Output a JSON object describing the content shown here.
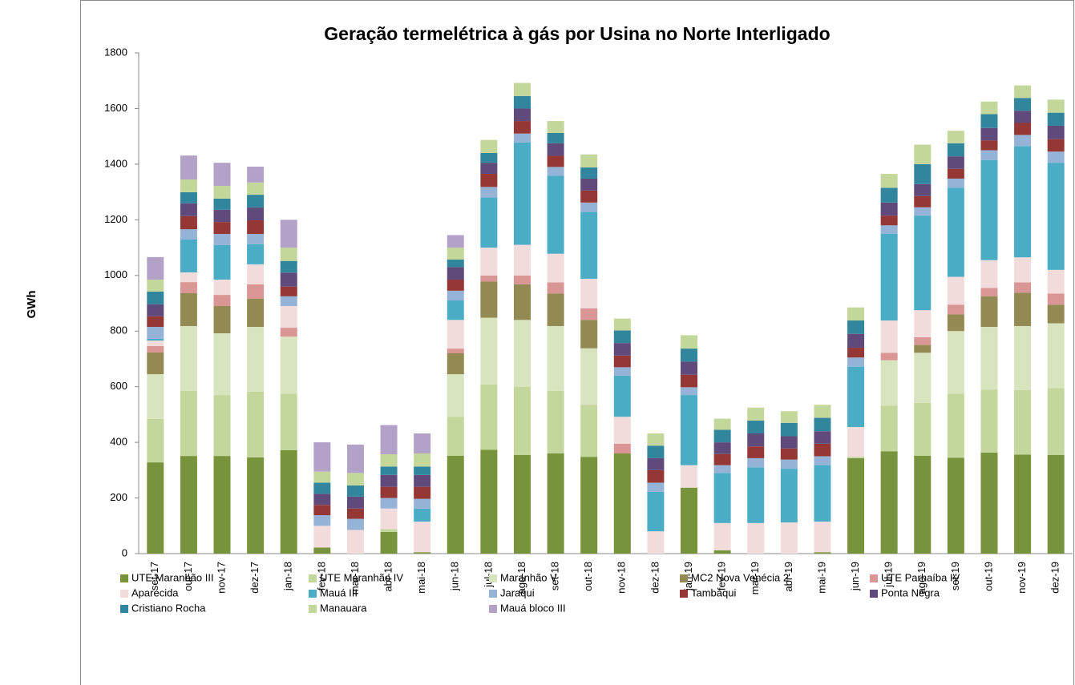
{
  "chart_data": {
    "type": "stacked-bar",
    "title": "Geração termelétrica à gás por Usina no Norte Interligado",
    "y_label": "GWh",
    "categories": [
      "set-17",
      "out-17",
      "nov-17",
      "dez-17",
      "jan-18",
      "fev-18",
      "mar-18",
      "abr-18",
      "mai-18",
      "jun-18",
      "jul-18",
      "ago-18",
      "set-18",
      "out-18",
      "nov-18",
      "dez-18",
      "jan-19",
      "fev-19",
      "mar-19",
      "abr-19",
      "mai-19",
      "jun-19",
      "jul-19",
      "ago-19",
      "set-19",
      "out-19",
      "nov-19",
      "dez-19"
    ],
    "ylim": [
      0,
      1800
    ],
    "yticks": [
      0,
      200,
      400,
      600,
      800,
      1000,
      1200,
      1400,
      1600,
      1800
    ],
    "grid": false,
    "legend": "bottom",
    "series": [
      {
        "name": "UTE Maranhão III",
        "color": "#77933c",
        "values": [
          328,
          351,
          351,
          346,
          372,
          22,
          0,
          78,
          5,
          352,
          373,
          355,
          360,
          348,
          360,
          0,
          237,
          12,
          0,
          0,
          5,
          343,
          368,
          352,
          345,
          363,
          356,
          355
        ]
      },
      {
        "name": "UTE Maranhão IV",
        "color": "#c3d69b",
        "values": [
          156,
          234,
          219,
          236,
          203,
          0,
          0,
          10,
          0,
          140,
          235,
          245,
          225,
          187,
          0,
          0,
          0,
          0,
          0,
          0,
          0,
          5,
          164,
          190,
          230,
          227,
          232,
          240
        ]
      },
      {
        "name": "Maranhão V",
        "color": "#d7e4bd",
        "values": [
          161,
          233,
          222,
          233,
          205,
          0,
          0,
          0,
          0,
          153,
          240,
          240,
          233,
          203,
          0,
          0,
          0,
          0,
          0,
          0,
          0,
          0,
          163,
          180,
          225,
          225,
          230,
          233
        ]
      },
      {
        "name": "MC2 Nova Venécia 2",
        "color": "#938953",
        "values": [
          78,
          118,
          98,
          101,
          0,
          0,
          0,
          0,
          0,
          75,
          130,
          128,
          117,
          102,
          0,
          0,
          0,
          0,
          0,
          0,
          0,
          0,
          0,
          28,
          60,
          110,
          120,
          67
        ]
      },
      {
        "name": "UTE Parnaíba IV",
        "color": "#d99694",
        "values": [
          23,
          40,
          40,
          52,
          32,
          0,
          0,
          0,
          0,
          17,
          22,
          32,
          40,
          42,
          35,
          0,
          0,
          0,
          0,
          0,
          0,
          0,
          27,
          28,
          35,
          30,
          37,
          40
        ]
      },
      {
        "name": "Aparecida",
        "color": "#f2dcdb",
        "values": [
          20,
          35,
          55,
          72,
          78,
          78,
          85,
          74,
          110,
          103,
          100,
          110,
          103,
          106,
          97,
          80,
          81,
          98,
          110,
          112,
          110,
          107,
          116,
          97,
          100,
          100,
          90,
          85
        ]
      },
      {
        "name": "Mauá III",
        "color": "#4bacc6",
        "values": [
          6,
          118,
          124,
          72,
          0,
          0,
          0,
          0,
          47,
          70,
          180,
          368,
          280,
          240,
          148,
          142,
          252,
          180,
          200,
          193,
          203,
          217,
          312,
          340,
          320,
          360,
          400,
          385
        ]
      },
      {
        "name": "Jaraqui",
        "color": "#95b3d7",
        "values": [
          43,
          37,
          40,
          37,
          35,
          38,
          40,
          38,
          35,
          35,
          38,
          32,
          32,
          34,
          30,
          33,
          28,
          28,
          33,
          33,
          32,
          33,
          30,
          30,
          33,
          35,
          40,
          40
        ]
      },
      {
        "name": "Tambaqui",
        "color": "#953735",
        "values": [
          38,
          47,
          43,
          49,
          35,
          37,
          37,
          40,
          43,
          40,
          47,
          45,
          40,
          43,
          42,
          45,
          45,
          40,
          42,
          40,
          45,
          35,
          35,
          40,
          35,
          35,
          43,
          45
        ]
      },
      {
        "name": "Ponta Negra",
        "color": "#604a7b",
        "values": [
          43,
          46,
          44,
          46,
          50,
          40,
          43,
          43,
          43,
          45,
          40,
          45,
          45,
          43,
          45,
          43,
          47,
          42,
          47,
          44,
          45,
          50,
          47,
          43,
          45,
          45,
          44,
          48
        ]
      },
      {
        "name": "Cristiano Rocha",
        "color": "#31859c",
        "values": [
          46,
          40,
          40,
          46,
          42,
          40,
          40,
          30,
          30,
          27,
          35,
          45,
          37,
          40,
          45,
          45,
          47,
          45,
          46,
          48,
          48,
          48,
          53,
          72,
          47,
          50,
          46,
          47
        ]
      },
      {
        "name": "Manauara",
        "color": "#c4d79b",
        "values": [
          43,
          46,
          46,
          44,
          48,
          40,
          45,
          44,
          47,
          43,
          47,
          47,
          43,
          47,
          43,
          44,
          48,
          40,
          47,
          42,
          47,
          47,
          50,
          70,
          45,
          45,
          45,
          47
        ]
      },
      {
        "name": "Mauá bloco III",
        "color": "#b3a2c7",
        "values": [
          81,
          86,
          83,
          57,
          100,
          105,
          102,
          105,
          72,
          45,
          0,
          0,
          0,
          0,
          0,
          0,
          0,
          0,
          0,
          0,
          0,
          0,
          0,
          0,
          0,
          0,
          0,
          0
        ]
      }
    ]
  }
}
